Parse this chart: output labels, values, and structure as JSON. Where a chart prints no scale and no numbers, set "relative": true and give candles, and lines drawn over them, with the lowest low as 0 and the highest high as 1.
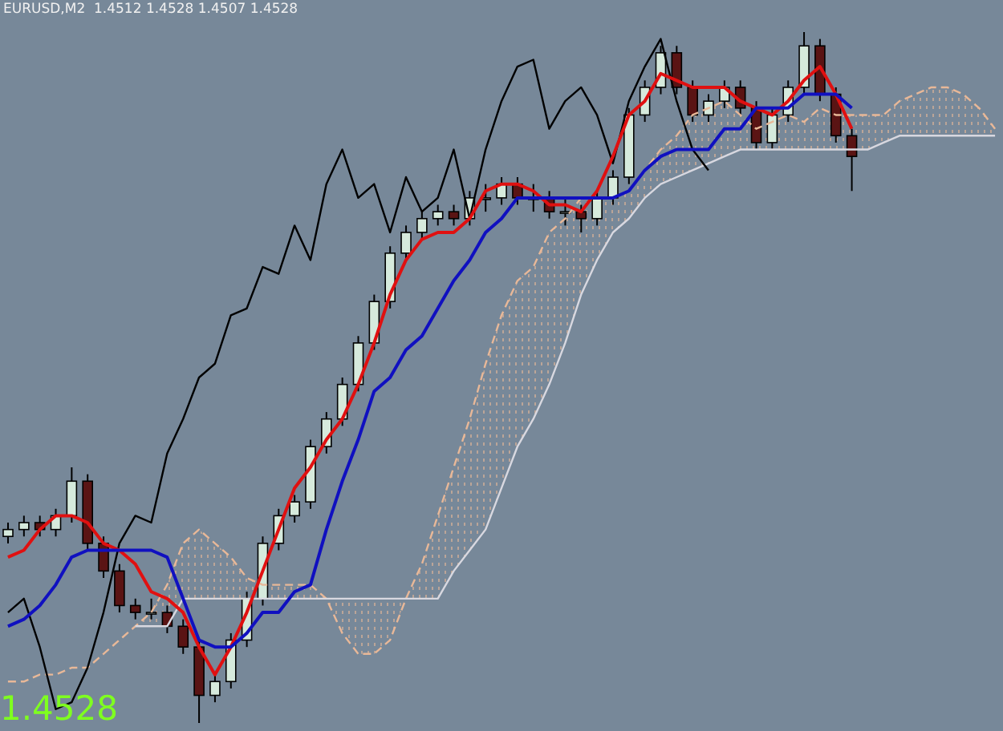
{
  "chart_data": {
    "type": "candlestick",
    "title": "EURUSD,M2  1.4512 1.4528 1.4507 1.4528",
    "annotations": [
      "1.4528"
    ],
    "relative": true,
    "tick_labels": false,
    "legend": false,
    "categories": [
      null,
      null,
      null,
      null,
      null,
      null,
      null,
      null,
      null,
      null,
      null,
      null,
      null,
      null,
      null,
      null,
      null,
      null,
      null,
      null,
      null,
      null,
      null,
      null,
      null,
      null,
      null,
      null,
      null,
      null,
      null,
      null,
      null,
      null,
      null,
      null,
      null,
      null,
      null,
      null,
      null,
      null,
      null,
      null,
      null,
      null,
      null,
      null,
      null,
      null,
      null,
      null,
      null,
      null,
      null,
      null,
      null,
      null,
      null,
      null,
      null,
      null,
      null
    ],
    "ohlc": [
      [
        0.27,
        0.29,
        0.26,
        0.28
      ],
      [
        0.28,
        0.3,
        0.27,
        0.29
      ],
      [
        0.29,
        0.3,
        0.27,
        0.28
      ],
      [
        0.28,
        0.31,
        0.27,
        0.3
      ],
      [
        0.3,
        0.37,
        0.29,
        0.35
      ],
      [
        0.35,
        0.36,
        0.25,
        0.26
      ],
      [
        0.26,
        0.27,
        0.21,
        0.22
      ],
      [
        0.22,
        0.23,
        0.16,
        0.17
      ],
      [
        0.17,
        0.18,
        0.15,
        0.16
      ],
      [
        0.16,
        0.18,
        0.15,
        0.16
      ],
      [
        0.16,
        0.17,
        0.13,
        0.14
      ],
      [
        0.14,
        0.15,
        0.1,
        0.11
      ],
      [
        0.11,
        0.12,
        0,
        0.04
      ],
      [
        0.04,
        0.07,
        0.03,
        0.06
      ],
      [
        0.06,
        0.13,
        0.05,
        0.12
      ],
      [
        0.12,
        0.19,
        0.11,
        0.18
      ],
      [
        0.18,
        0.27,
        0.17,
        0.26
      ],
      [
        0.26,
        0.31,
        0.25,
        0.3
      ],
      [
        0.3,
        0.33,
        0.29,
        0.32
      ],
      [
        0.32,
        0.41,
        0.31,
        0.4
      ],
      [
        0.4,
        0.45,
        0.39,
        0.44
      ],
      [
        0.44,
        0.5,
        0.43,
        0.49
      ],
      [
        0.49,
        0.56,
        0.48,
        0.55
      ],
      [
        0.55,
        0.62,
        0.54,
        0.61
      ],
      [
        0.61,
        0.69,
        0.6,
        0.68
      ],
      [
        0.68,
        0.72,
        0.67,
        0.71
      ],
      [
        0.71,
        0.74,
        0.7,
        0.73
      ],
      [
        0.73,
        0.75,
        0.72,
        0.74
      ],
      [
        0.74,
        0.75,
        0.72,
        0.73
      ],
      [
        0.73,
        0.77,
        0.72,
        0.76
      ],
      [
        0.76,
        0.78,
        0.74,
        0.76
      ],
      [
        0.76,
        0.79,
        0.75,
        0.78
      ],
      [
        0.78,
        0.79,
        0.75,
        0.76
      ],
      [
        0.76,
        0.78,
        0.74,
        0.76
      ],
      [
        0.76,
        0.77,
        0.73,
        0.74
      ],
      [
        0.74,
        0.76,
        0.72,
        0.74
      ],
      [
        0.74,
        0.75,
        0.71,
        0.73
      ],
      [
        0.73,
        0.77,
        0.72,
        0.76
      ],
      [
        0.76,
        0.8,
        0.75,
        0.79
      ],
      [
        0.79,
        0.89,
        0.78,
        0.88
      ],
      [
        0.88,
        0.93,
        0.87,
        0.92
      ],
      [
        0.92,
        0.98,
        0.91,
        0.97
      ],
      [
        0.97,
        0.98,
        0.91,
        0.92
      ],
      [
        0.92,
        0.93,
        0.87,
        0.88
      ],
      [
        0.88,
        0.91,
        0.87,
        0.9
      ],
      [
        0.9,
        0.93,
        0.89,
        0.92
      ],
      [
        0.92,
        0.93,
        0.88,
        0.89
      ],
      [
        0.89,
        0.9,
        0.83,
        0.84
      ],
      [
        0.84,
        0.89,
        0.83,
        0.88
      ],
      [
        0.88,
        0.93,
        0.87,
        0.92
      ],
      [
        0.92,
        1,
        0.91,
        0.98
      ],
      [
        0.98,
        0.99,
        0.9,
        0.91
      ],
      [
        0.91,
        0.92,
        0.84,
        0.85
      ],
      [
        0.85,
        0.86,
        0.77,
        0.82
      ],
      null,
      null,
      null,
      null,
      null,
      null,
      null,
      null,
      null
    ],
    "colors": [
      "#d6eadc",
      "#d6eadc",
      "#5a1414",
      "#d6eadc",
      "#d6eadc",
      "#5a1414",
      "#5a1414",
      "#5a1414",
      "#5a1414",
      "#d6eadc",
      "#5a1414",
      "#5a1414",
      "#5a1414",
      "#d6eadc",
      "#d6eadc",
      "#d6eadc",
      "#d6eadc",
      "#d6eadc",
      "#d6eadc",
      "#d6eadc",
      "#d6eadc",
      "#d6eadc",
      "#d6eadc",
      "#d6eadc",
      "#d6eadc",
      "#d6eadc",
      "#d6eadc",
      "#d6eadc",
      "#5a1414",
      "#d6eadc",
      "#d6eadc",
      "#d6eadc",
      "#5a1414",
      "#d6eadc",
      "#5a1414",
      "#d6eadc",
      "#5a1414",
      "#d6eadc",
      "#d6eadc",
      "#d6eadc",
      "#d6eadc",
      "#d6eadc",
      "#5a1414",
      "#5a1414",
      "#d6eadc",
      "#d6eadc",
      "#5a1414",
      "#5a1414",
      "#d6eadc",
      "#d6eadc",
      "#d6eadc",
      "#5a1414",
      "#5a1414",
      "#5a1414",
      null,
      null,
      null,
      null,
      null,
      null,
      null,
      null,
      null
    ],
    "series": [
      {
        "type": "line",
        "color": "#e8b898",
        "line_style": "dashed",
        "lower": [
          null,
          null,
          null,
          null,
          null,
          null,
          null,
          null,
          0.14,
          0.14,
          0.14,
          0.18,
          0.18,
          0.18,
          0.18,
          0.18,
          0.18,
          0.18,
          0.18,
          0.18,
          0.18,
          0.13,
          0.1,
          0.1,
          0.12,
          0.18,
          0.18,
          0.18,
          0.22,
          0.25,
          0.28,
          0.34,
          0.4,
          0.44,
          0.49,
          0.55,
          0.62,
          0.67,
          0.71,
          0.73,
          0.76,
          0.78,
          0.79,
          0.8,
          0.81,
          0.82,
          0.83,
          0.83,
          0.83,
          0.83,
          0.83,
          0.83,
          0.83,
          0.83,
          0.83,
          0.84,
          0.85,
          0.85,
          0.85,
          0.85,
          0.85,
          0.85,
          0.85
        ],
        "upper": [
          null,
          null,
          null,
          null,
          null,
          null,
          null,
          null,
          0.14,
          0.16,
          0.2,
          0.26,
          0.28,
          0.26,
          0.24,
          0.21,
          0.2,
          0.2,
          0.2,
          0.2,
          0.18,
          0.18,
          0.18,
          0.18,
          0.18,
          0.18,
          0.23,
          0.3,
          0.37,
          0.44,
          0.52,
          0.59,
          0.64,
          0.66,
          0.71,
          0.73,
          0.76,
          0.76,
          0.76,
          0.77,
          0.8,
          0.83,
          0.85,
          0.88,
          0.89,
          0.9,
          0.88,
          0.86,
          0.87,
          0.88,
          0.87,
          0.89,
          0.88,
          0.88,
          0.88,
          0.88,
          0.9,
          0.91,
          0.92,
          0.92,
          0.91,
          0.89,
          0.86
        ],
        "values": [
          0.06,
          0.06,
          0.07,
          0.07,
          0.08,
          0.08,
          0.1,
          0.12,
          0.14,
          0.16,
          0.2,
          0.26,
          0.28,
          0.26,
          0.24,
          0.21,
          0.2,
          0.2,
          0.2,
          0.2,
          0.18,
          0.13,
          0.1,
          0.1,
          0.12,
          0.18,
          0.23,
          0.3,
          0.37,
          0.44,
          0.52,
          0.59,
          0.64,
          0.66,
          0.71,
          0.73,
          0.76,
          0.76,
          0.76,
          0.77,
          0.8,
          0.83,
          0.85,
          0.88,
          0.89,
          0.9,
          0.88,
          0.86,
          0.87,
          0.88,
          0.87,
          0.89,
          0.88,
          0.88,
          0.88,
          0.88,
          0.9,
          0.91,
          0.92,
          0.92,
          0.91,
          0.89,
          0.86
        ]
      },
      {
        "type": "line",
        "color": "#d8d8e0",
        "values": [
          null,
          null,
          null,
          null,
          null,
          null,
          null,
          null,
          0.14,
          0.14,
          0.14,
          0.18,
          0.18,
          0.18,
          0.18,
          0.18,
          0.18,
          0.18,
          0.18,
          0.18,
          0.18,
          0.18,
          0.18,
          0.18,
          0.18,
          0.18,
          0.18,
          0.18,
          0.22,
          0.25,
          0.28,
          0.34,
          0.4,
          0.44,
          0.49,
          0.55,
          0.62,
          0.67,
          0.71,
          0.73,
          0.76,
          0.78,
          0.79,
          0.8,
          0.81,
          0.82,
          0.83,
          0.83,
          0.83,
          0.83,
          0.83,
          0.83,
          0.83,
          0.83,
          0.83,
          0.84,
          0.85,
          0.85,
          0.85,
          0.85,
          0.85,
          0.85,
          0.85
        ]
      },
      {
        "type": "line",
        "color": "#000000",
        "values": [
          0.16,
          0.18,
          0.11,
          0.02,
          0.03,
          0.08,
          0.16,
          0.26,
          0.3,
          0.29,
          0.39,
          0.44,
          0.5,
          0.52,
          0.59,
          0.6,
          0.66,
          0.65,
          0.72,
          0.67,
          0.78,
          0.83,
          0.76,
          0.78,
          0.71,
          0.79,
          0.74,
          0.76,
          0.83,
          0.73,
          0.83,
          0.9,
          0.95,
          0.96,
          0.86,
          0.9,
          0.92,
          0.88,
          0.81,
          0.9,
          0.95,
          0.99,
          0.9,
          0.83,
          0.8,
          null,
          null,
          null,
          null,
          null,
          null,
          null,
          null,
          null,
          null,
          null,
          null,
          null,
          null,
          null,
          null,
          null,
          null
        ]
      },
      {
        "type": "line",
        "color": "#e01010",
        "values": [
          0.24,
          0.25,
          0.28,
          0.3,
          0.3,
          0.29,
          0.26,
          0.25,
          0.23,
          0.19,
          0.18,
          0.16,
          0.11,
          0.07,
          0.11,
          0.16,
          0.22,
          0.28,
          0.34,
          0.37,
          0.41,
          0.44,
          0.49,
          0.55,
          0.62,
          0.67,
          0.7,
          0.71,
          0.71,
          0.73,
          0.77,
          0.78,
          0.78,
          0.77,
          0.75,
          0.75,
          0.74,
          0.77,
          0.82,
          0.88,
          0.9,
          0.94,
          0.93,
          0.92,
          0.92,
          0.92,
          0.9,
          0.89,
          0.88,
          0.9,
          0.93,
          0.95,
          0.91,
          0.86,
          null,
          null,
          null,
          null,
          null,
          null,
          null,
          null,
          null
        ]
      },
      {
        "type": "line",
        "color": "#1010c0",
        "values": [
          0.14,
          0.15,
          0.17,
          0.2,
          0.24,
          0.25,
          0.25,
          0.25,
          0.25,
          0.25,
          0.24,
          0.18,
          0.12,
          0.11,
          0.11,
          0.13,
          0.16,
          0.16,
          0.19,
          0.2,
          0.28,
          0.35,
          0.41,
          0.48,
          0.5,
          0.54,
          0.56,
          0.6,
          0.64,
          0.67,
          0.71,
          0.73,
          0.76,
          0.76,
          0.76,
          0.76,
          0.76,
          0.76,
          0.76,
          0.77,
          0.8,
          0.82,
          0.83,
          0.83,
          0.83,
          0.86,
          0.86,
          0.89,
          0.89,
          0.89,
          0.91,
          0.91,
          0.91,
          0.89,
          null,
          null,
          null,
          null,
          null,
          null,
          null,
          null,
          null
        ]
      }
    ]
  }
}
